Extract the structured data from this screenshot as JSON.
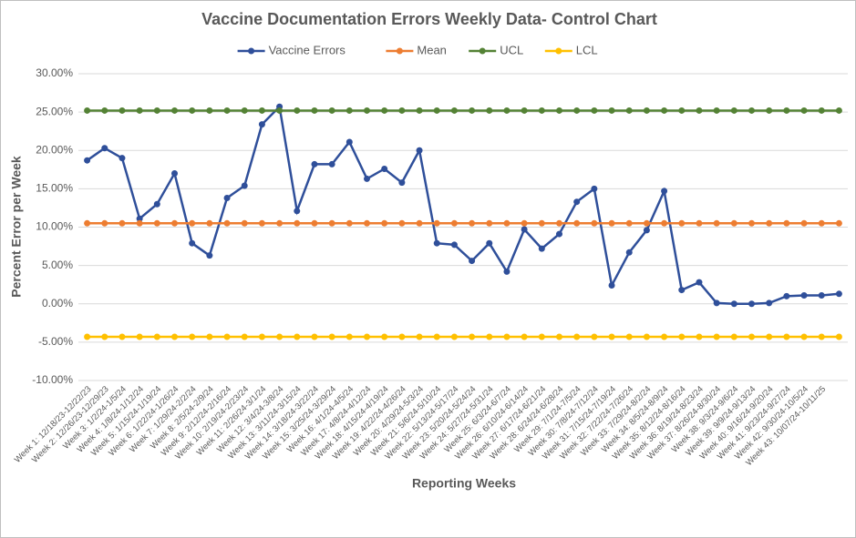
{
  "chart_data": {
    "type": "line",
    "title": "Vaccine Documentation Errors Weekly Data- Control Chart",
    "x_label": "Reporting  Weeks",
    "y_label": "Percent Error per Week",
    "categories": [
      "Week 1: 12/18/23-12/22/23",
      "Week 2: 12/26/23-12/29/23",
      "Week 3: 1/2/24-1/5/24",
      "Week 4: 1/8/24-1/12/24",
      "Week 5: 1/15/24-1/19/24",
      "Week 6: 1/22/24-1/26/24",
      "Week 7: 1/29/24-2/2/24",
      "Week 8: 2/5/24-2/9/24",
      "Week 9: 2/12/24-2/16/24",
      "Week 10: 2/19/24-2/23/24",
      "Week 11: 2/26/24-3/1/24",
      "Week 12: 3/4/24-3/8/24",
      "Week 13: 3/11/24-3/15/24",
      "Week 14: 3/18/24-3/22/24",
      "Week 15: 3/25/24-3/29/24",
      "Week 16: 4/1/24-4/5/24",
      "Week 17: 4/8/24-4/12/24",
      "Week 18: 4/15/24-4/19/24",
      "Week 19: 4/22/24-4/26/24",
      "Week 20: 4/29/24-5/3/24",
      "Week 21: 5/6/24-5/10/24",
      "Week 22: 5/13/24-5/17/24",
      "Week 23: 5/20/24-5/24/24",
      "Week 24: 5/27/24-5/31/24",
      "Week 25: 6/3/24-6/7/24",
      "Week 26: 6/10/24-6/14/24",
      "Week 27: 6/17/24-6/21/24",
      "Week 28: 6/24/24-6/28/24",
      "Week 29: 7/1/24-7/5/24",
      "Week 30: 7/8/24-7/12/24",
      "Week 31: 7/15/24-7/19/24",
      "Week 32: 7/22/24-7/26/24",
      "Week 33: 7/29/24-8/2/24",
      "Week 34: 8/5/24-8/9/24",
      "Week 35: 8/12/24-8/16/24",
      "Week 36: 8/19/24-8/23/24",
      "Week 37: 8/26/24-8/30/24",
      "Week 38: 9/3/24-9/6/24",
      "Week 39: 9/9/24-9/13/24",
      "Week 40: 9/16/24-9/20/24",
      "Week 41: 9/23/24-9/27/24",
      "Week 42: 9/30/24-10/5/24",
      "Week 43: 10/07/24-10/11/25",
      null
    ],
    "series": [
      {
        "name": "Vaccine Errors",
        "color": "#2f4f9a",
        "values": [
          18.7,
          20.3,
          19.0,
          11.1,
          13.0,
          17.0,
          7.9,
          6.3,
          13.8,
          15.4,
          23.4,
          25.7,
          12.1,
          18.2,
          18.2,
          21.1,
          16.3,
          17.6,
          15.8,
          20.0,
          7.9,
          7.7,
          5.6,
          7.9,
          4.2,
          9.7,
          7.2,
          9.1,
          13.3,
          15.0,
          2.4,
          6.7,
          9.6,
          14.7,
          1.8,
          2.8,
          0.1,
          0,
          0,
          0.1,
          1.0,
          1.1,
          1.1,
          1.3
        ]
      },
      {
        "name": "Mean",
        "color": "#ed7d31",
        "values": [
          10.5,
          10.5,
          10.5,
          10.5,
          10.5,
          10.5,
          10.5,
          10.5,
          10.5,
          10.5,
          10.5,
          10.5,
          10.5,
          10.5,
          10.5,
          10.5,
          10.5,
          10.5,
          10.5,
          10.5,
          10.5,
          10.5,
          10.5,
          10.5,
          10.5,
          10.5,
          10.5,
          10.5,
          10.5,
          10.5,
          10.5,
          10.5,
          10.5,
          10.5,
          10.5,
          10.5,
          10.5,
          10.5,
          10.5,
          10.5,
          10.5,
          10.5,
          10.5,
          10.5
        ]
      },
      {
        "name": "UCL",
        "color": "#548235",
        "values": [
          25.2,
          25.2,
          25.2,
          25.2,
          25.2,
          25.2,
          25.2,
          25.2,
          25.2,
          25.2,
          25.2,
          25.2,
          25.2,
          25.2,
          25.2,
          25.2,
          25.2,
          25.2,
          25.2,
          25.2,
          25.2,
          25.2,
          25.2,
          25.2,
          25.2,
          25.2,
          25.2,
          25.2,
          25.2,
          25.2,
          25.2,
          25.2,
          25.2,
          25.2,
          25.2,
          25.2,
          25.2,
          25.2,
          25.2,
          25.2,
          25.2,
          25.2,
          25.2,
          25.2
        ]
      },
      {
        "name": "LCL",
        "color": "#ffc000",
        "values": [
          -4.3,
          -4.3,
          -4.3,
          -4.3,
          -4.3,
          -4.3,
          -4.3,
          -4.3,
          -4.3,
          -4.3,
          -4.3,
          -4.3,
          -4.3,
          -4.3,
          -4.3,
          -4.3,
          -4.3,
          -4.3,
          -4.3,
          -4.3,
          -4.3,
          -4.3,
          -4.3,
          -4.3,
          -4.3,
          -4.3,
          -4.3,
          -4.3,
          -4.3,
          -4.3,
          -4.3,
          -4.3,
          -4.3,
          -4.3,
          -4.3,
          -4.3,
          -4.3,
          -4.3,
          -4.3,
          -4.3,
          -4.3,
          -4.3,
          -4.3,
          -4.3
        ]
      }
    ],
    "ylim": [
      -10,
      30
    ],
    "yticks": [
      {
        "value": -10,
        "label": "-10.00%"
      },
      {
        "value": -5,
        "label": "-5.00%"
      },
      {
        "value": 0,
        "label": "0.00%"
      },
      {
        "value": 5,
        "label": "5.00%"
      },
      {
        "value": 10,
        "label": "10.00%"
      },
      {
        "value": 15,
        "label": "15.00%"
      },
      {
        "value": 20,
        "label": "20.00%"
      },
      {
        "value": 25,
        "label": "25.00%"
      },
      {
        "value": 30,
        "label": "30.00%"
      }
    ],
    "grid": true,
    "legend": "top"
  }
}
